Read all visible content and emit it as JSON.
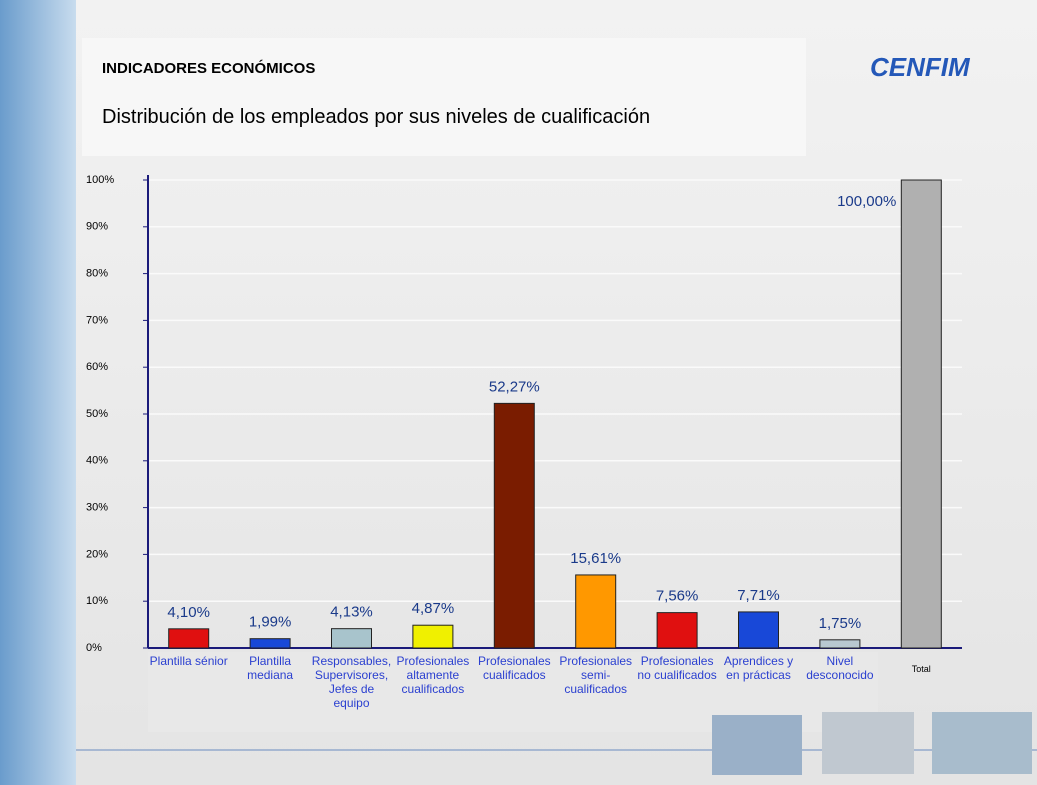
{
  "header": {
    "title": "INDICADORES ECONÓMICOS",
    "subtitle": "Distribución de los empleados por sus niveles de cualificación",
    "logo": "CENFIM"
  },
  "chart_data": {
    "type": "bar",
    "categories": [
      "Plantilla sénior",
      "Plantilla mediana",
      "Responsables, Supervisores, Jefes de equipo",
      "Profesionales altamente cualificados",
      "Profesionales cualificados",
      "Profesionales semi-cualificados",
      "Profesionales no cualificados",
      "Aprendices y en prácticas",
      "Nivel desconocido",
      "Total"
    ],
    "values": [
      4.1,
      1.99,
      4.13,
      4.87,
      52.27,
      15.61,
      7.56,
      7.71,
      1.75,
      100.0
    ],
    "value_labels": [
      "4,10%",
      "1,99%",
      "4,13%",
      "4,87%",
      "52,27%",
      "15,61%",
      "7,56%",
      "7,71%",
      "1,75%",
      "100,00%"
    ],
    "colors": [
      "#e01010",
      "#1848d8",
      "#a8c4cc",
      "#f0f000",
      "#7a1c00",
      "#ff9800",
      "#e01010",
      "#1848d8",
      "#b8c8d0",
      "#b0b0b0"
    ],
    "ylim": [
      0,
      100
    ],
    "yticks": [
      {
        "value": 0,
        "label": "0%"
      },
      {
        "value": 10,
        "label": "10%"
      },
      {
        "value": 20,
        "label": "20%"
      },
      {
        "value": 30,
        "label": "30%"
      },
      {
        "value": 40,
        "label": "40%"
      },
      {
        "value": 50,
        "label": "50%"
      },
      {
        "value": 60,
        "label": "60%"
      },
      {
        "value": 70,
        "label": "70%"
      },
      {
        "value": 80,
        "label": "80%"
      },
      {
        "value": 90,
        "label": "90%"
      },
      {
        "value": 100,
        "label": "100%"
      }
    ],
    "grid": true
  }
}
